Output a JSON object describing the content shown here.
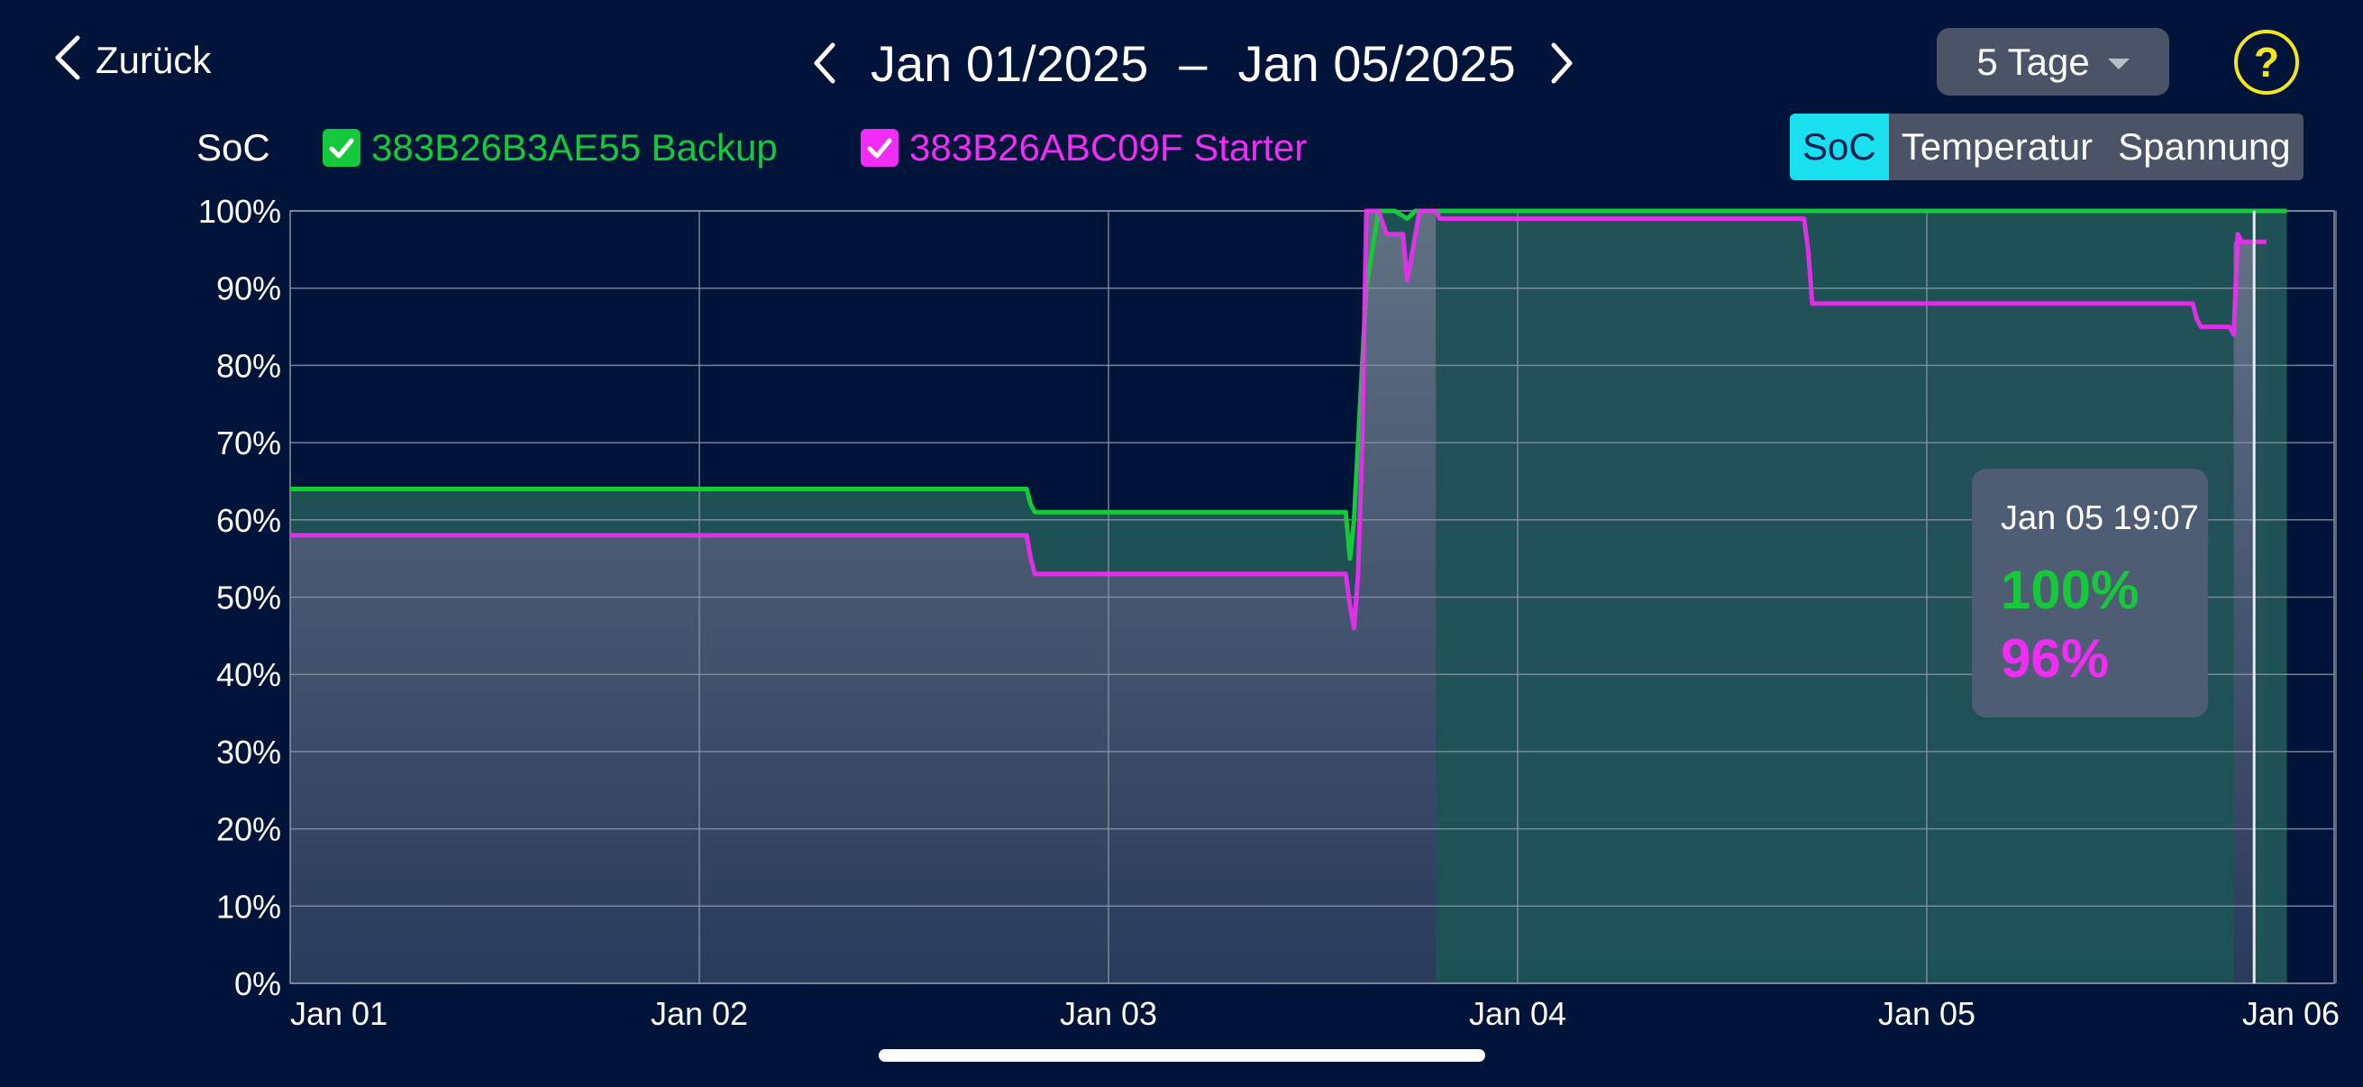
{
  "nav": {
    "back_label": "Zurück",
    "date_from": "Jan 01/2025",
    "separator": "–",
    "date_to": "Jan 05/2025",
    "range_label": "5 Tage",
    "help_label": "?"
  },
  "legend": {
    "metric_label": "SoC",
    "series1_label": "383B26B3AE55 Backup",
    "series2_label": "383B26ABC09F Starter"
  },
  "tabs": [
    {
      "label": "SoC",
      "active": true
    },
    {
      "label": "Temperatur",
      "active": false
    },
    {
      "label": "Spannung",
      "active": false
    }
  ],
  "tooltip": {
    "time": "Jan 05 19:07",
    "value1": "100%",
    "value2": "96%"
  },
  "colors": {
    "background": "#00143a",
    "series1": "#16c93a",
    "series2": "#f12cf5",
    "active_tab": "#19e0ee",
    "help": "#f5e61b"
  },
  "chart_data": {
    "type": "area",
    "y_tick_labels": [
      "0%",
      "10%",
      "20%",
      "30%",
      "40%",
      "50%",
      "60%",
      "70%",
      "80%",
      "90%",
      "100%"
    ],
    "x_tick_labels": [
      "Jan 01",
      "Jan 02",
      "Jan 03",
      "Jan 04",
      "Jan 05",
      "Jan 06"
    ],
    "ylim": [
      0,
      100
    ],
    "xlim_days": [
      0,
      5
    ],
    "grid": true,
    "series": [
      {
        "name": "383B26B3AE55 Backup",
        "color": "#16c93a",
        "x": [
          0,
          1.8,
          1.81,
          1.82,
          2.58,
          2.59,
          2.6,
          2.63,
          2.66,
          2.7,
          2.73,
          2.75,
          2.76,
          2.78,
          2.8,
          4.7,
          4.78,
          4.8,
          4.83,
          4.84,
          4.87,
          4.88
        ],
        "y": [
          64,
          64,
          62,
          61,
          61,
          55,
          60,
          90,
          100,
          100,
          99,
          100,
          100,
          100,
          100,
          100,
          100,
          100,
          100,
          100,
          100,
          100
        ]
      },
      {
        "name": "383B26ABC09F Starter",
        "color": "#f12cf5",
        "x": [
          0,
          1.8,
          1.81,
          1.82,
          2.58,
          2.59,
          2.6,
          2.61,
          2.62,
          2.63,
          2.66,
          2.68,
          2.72,
          2.73,
          2.74,
          2.76,
          2.78,
          2.8,
          2.81,
          3.7,
          3.71,
          3.72,
          4.65,
          4.66,
          4.67,
          4.74,
          4.75,
          4.76,
          4.77,
          4.8,
          4.83
        ],
        "y": [
          58,
          58,
          55,
          53,
          53,
          49,
          46,
          53,
          70,
          100,
          100,
          97,
          97,
          91,
          94,
          100,
          100,
          100,
          99,
          99,
          95,
          88,
          88,
          86,
          85,
          85,
          84,
          97,
          96,
          96,
          96
        ]
      }
    ],
    "cursor_x_days": 4.8
  }
}
